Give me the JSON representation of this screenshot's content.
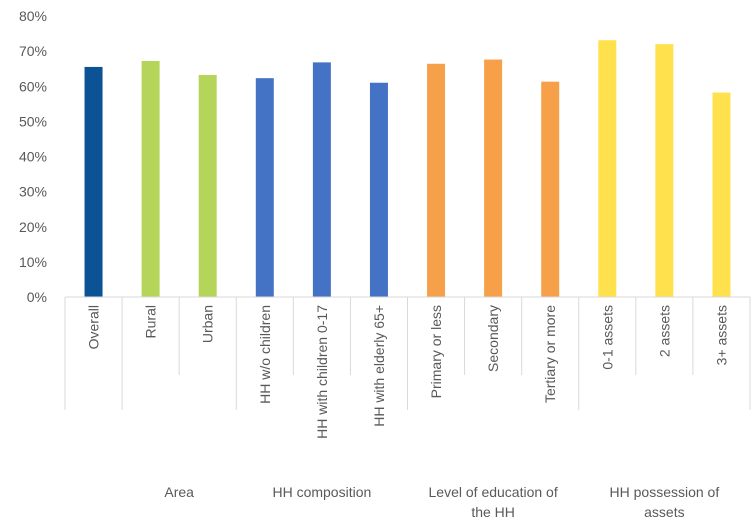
{
  "chart_data": {
    "type": "bar",
    "categories": [
      "Overall",
      "Rural",
      "Urban",
      "HH w/o children",
      "HH with children 0-17",
      "HH with elderly 65+",
      "Primary or less",
      "Secondary",
      "Tertiary or more",
      "0-1 assets",
      "2 assets",
      "3+ assets"
    ],
    "values": [
      65.5,
      67.2,
      63.2,
      62.3,
      66.8,
      61.0,
      66.4,
      67.6,
      61.3,
      73.1,
      72.0,
      58.2
    ],
    "value_unit": "percent",
    "colors": [
      "#0b5394",
      "#b5d55a",
      "#b5d55a",
      "#4472c4",
      "#4472c4",
      "#4472c4",
      "#f6a04a",
      "#f6a04a",
      "#f6a04a",
      "#ffe14d",
      "#ffe14d",
      "#ffe14d"
    ],
    "groups": [
      {
        "label_lines": [
          ""
        ],
        "start": 0,
        "end": 0
      },
      {
        "label_lines": [
          "Area"
        ],
        "start": 1,
        "end": 2
      },
      {
        "label_lines": [
          "HH composition"
        ],
        "start": 3,
        "end": 5
      },
      {
        "label_lines": [
          "Level of education of",
          "the HH"
        ],
        "start": 6,
        "end": 8
      },
      {
        "label_lines": [
          "HH possession of",
          "assets"
        ],
        "start": 9,
        "end": 11
      }
    ],
    "y_ticks": [
      "0%",
      "10%",
      "20%",
      "30%",
      "40%",
      "50%",
      "60%",
      "70%",
      "80%"
    ],
    "ylim": [
      0,
      80
    ],
    "grid": false,
    "legend": "none"
  }
}
